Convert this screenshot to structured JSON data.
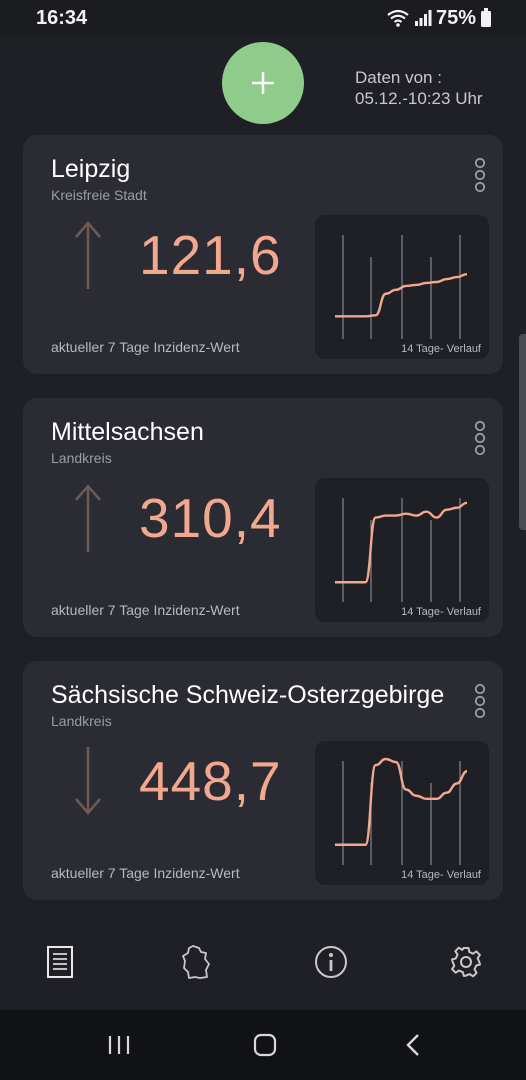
{
  "status_bar": {
    "time": "16:34",
    "battery": "75%"
  },
  "header": {
    "add_label": "+",
    "data_from_label": "Daten von :",
    "data_from_value": "05.12.-10:23 Uhr"
  },
  "colors": {
    "accent": "#f2a88e",
    "fab": "#8fcb8a",
    "card": "#2b2c33",
    "background": "#1f2026"
  },
  "cards": [
    {
      "name": "Leipzig",
      "type": "Kreisfreie Stadt",
      "value": "121,6",
      "trend": "up",
      "caption": "aktueller 7 Tage Inzidenz-Wert",
      "spark_label": "14 Tage- Verlauf",
      "spark_values": [
        0.15,
        0.15,
        0.15,
        0.15,
        0.16,
        0.38,
        0.42,
        0.46,
        0.47,
        0.49,
        0.5,
        0.53,
        0.55,
        0.58
      ]
    },
    {
      "name": "Mittelsachsen",
      "type": "Landkreis",
      "value": "310,4",
      "trend": "up",
      "caption": "aktueller 7 Tage Inzidenz-Wert",
      "spark_label": "14 Tage- Verlauf",
      "spark_values": [
        0.12,
        0.12,
        0.12,
        0.12,
        0.78,
        0.8,
        0.8,
        0.82,
        0.8,
        0.84,
        0.78,
        0.86,
        0.88,
        0.93
      ]
    },
    {
      "name": "Sächsische Schweiz-Osterzgebirge",
      "type": "Landkreis",
      "value": "448,7",
      "trend": "down",
      "caption": "aktueller 7 Tage Inzidenz-Wert",
      "spark_label": "14 Tage- Verlauf",
      "spark_values": [
        0.2,
        0.2,
        0.2,
        0.2,
        1.5,
        1.6,
        1.55,
        1.1,
        1.0,
        0.95,
        0.95,
        1.05,
        1.2,
        1.4
      ]
    }
  ],
  "bottom_nav": {
    "items": [
      {
        "icon": "list-icon"
      },
      {
        "icon": "germany-map-icon"
      },
      {
        "icon": "info-icon"
      },
      {
        "icon": "gear-icon"
      }
    ]
  },
  "system_nav": {
    "items": [
      "recent-apps-icon",
      "home-icon",
      "back-icon"
    ]
  }
}
